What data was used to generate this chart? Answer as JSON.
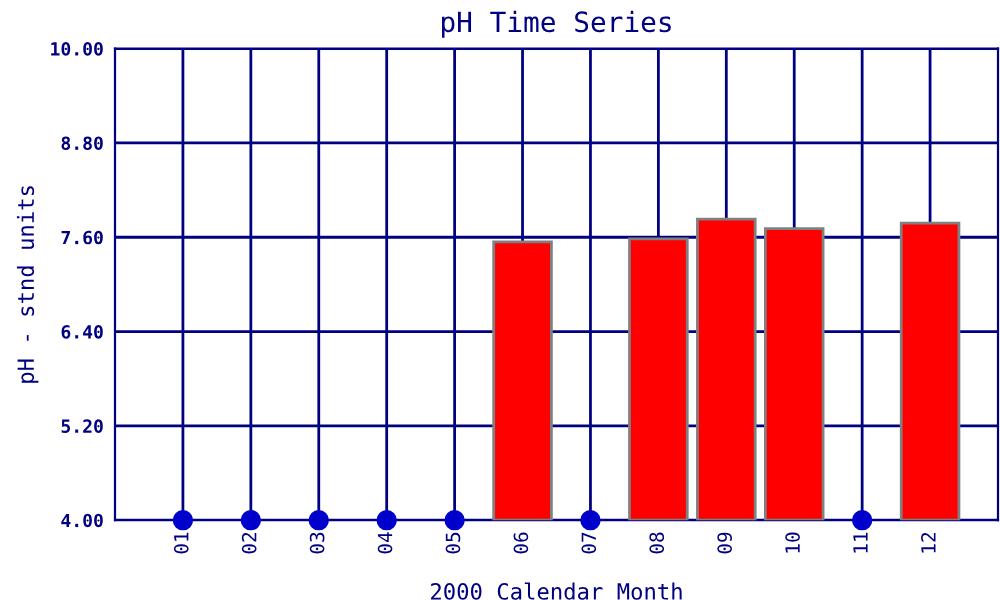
{
  "chart_data": {
    "type": "bar",
    "title": "pH Time Series",
    "xlabel": "2000 Calendar Month",
    "ylabel": "pH - stnd units",
    "categories": [
      "01",
      "02",
      "03",
      "04",
      "05",
      "06",
      "07",
      "08",
      "09",
      "10",
      "11",
      "12"
    ],
    "series": [
      {
        "color": "#ff0000",
        "values": [
          null,
          null,
          null,
          null,
          null,
          7.54,
          null,
          7.58,
          7.83,
          7.71,
          null,
          7.78
        ]
      },
      {
        "type": "scatter",
        "color": "#0000cc",
        "x": [
          "01",
          "02",
          "03",
          "04",
          "05",
          "07",
          "11"
        ],
        "values": [
          4.0,
          4.0,
          4.0,
          4.0,
          4.0,
          4.0,
          4.0
        ]
      }
    ],
    "ylim": [
      4.0,
      10.0
    ],
    "yticks": [
      {
        "value": 4.0,
        "label": "4.00"
      },
      {
        "value": 5.2,
        "label": "5.20"
      },
      {
        "value": 6.4,
        "label": "6.40"
      },
      {
        "value": 7.6,
        "label": "7.60"
      },
      {
        "value": 8.8,
        "label": "8.80"
      },
      {
        "value": 10.0,
        "label": "10.00"
      }
    ],
    "grid": true,
    "marker": "circle"
  }
}
